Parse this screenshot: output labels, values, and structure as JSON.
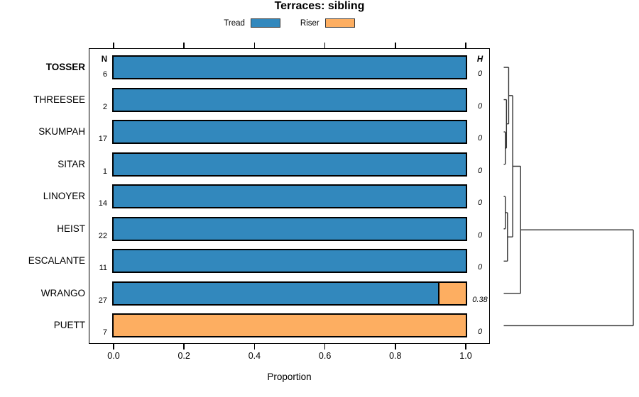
{
  "title": "Terraces: sibling",
  "legend": {
    "items": [
      {
        "label": "Tread",
        "color": "#3288BD"
      },
      {
        "label": "Riser",
        "color": "#FDAE61"
      }
    ]
  },
  "columns": {
    "n_header": "N",
    "h_header": "H"
  },
  "axis": {
    "xlabel": "Proportion",
    "tick_labels": [
      "0.0",
      "0.2",
      "0.4",
      "0.6",
      "0.8",
      "1.0"
    ],
    "tick_values": [
      0.0,
      0.2,
      0.4,
      0.6,
      0.8,
      1.0
    ]
  },
  "colors": {
    "tread": "#3288BD",
    "riser": "#FDAE61",
    "bar_border": "#000000",
    "dendrogram_line": "#333333"
  },
  "chart_data": {
    "type": "bar",
    "orientation": "horizontal-stacked",
    "title": "Terraces: sibling",
    "xlabel": "Proportion",
    "xlim": [
      0,
      1
    ],
    "legend_position": "top",
    "grid": false,
    "categories": [
      "TOSSER",
      "THREESEE",
      "SKUMPAH",
      "SITAR",
      "LINOYER",
      "HEIST",
      "ESCALANTE",
      "WRANGO",
      "PUETT"
    ],
    "series": [
      {
        "name": "Tread",
        "color": "#3288BD",
        "values": [
          1,
          1,
          1,
          1,
          1,
          1,
          1,
          0.926,
          0
        ]
      },
      {
        "name": "Riser",
        "color": "#FDAE61",
        "values": [
          0,
          0,
          0,
          0,
          0,
          0,
          0,
          0.074,
          1
        ]
      }
    ],
    "rows": [
      {
        "label": "TOSSER",
        "bold": true,
        "n": 6,
        "h": "0",
        "tread": 1,
        "riser": 0
      },
      {
        "label": "THREESEE",
        "bold": false,
        "n": 2,
        "h": "0",
        "tread": 1,
        "riser": 0
      },
      {
        "label": "SKUMPAH",
        "bold": false,
        "n": 17,
        "h": "0",
        "tread": 1,
        "riser": 0
      },
      {
        "label": "SITAR",
        "bold": false,
        "n": 1,
        "h": "0",
        "tread": 1,
        "riser": 0
      },
      {
        "label": "LINOYER",
        "bold": false,
        "n": 14,
        "h": "0",
        "tread": 1,
        "riser": 0
      },
      {
        "label": "HEIST",
        "bold": false,
        "n": 22,
        "h": "0",
        "tread": 1,
        "riser": 0
      },
      {
        "label": "ESCALANTE",
        "bold": false,
        "n": 11,
        "h": "0",
        "tread": 1,
        "riser": 0
      },
      {
        "label": "WRANGO",
        "bold": false,
        "n": 27,
        "h": "0.38",
        "tread": 0.926,
        "riser": 0.074
      },
      {
        "label": "PUETT",
        "bold": false,
        "n": 7,
        "h": "0",
        "tread": 0,
        "riser": 1
      }
    ],
    "dendrogram": {
      "note": "heights are relative, root = 1",
      "merges": [
        {
          "id": "c0",
          "a": "SKUMPAH",
          "b": "SITAR",
          "h": 0.012
        },
        {
          "id": "c1",
          "a": "THREESEE",
          "b": "c0",
          "h": 0.021
        },
        {
          "id": "c2",
          "a": "TOSSER",
          "b": "c1",
          "h": 0.038
        },
        {
          "id": "c3",
          "a": "LINOYER",
          "b": "HEIST",
          "h": 0.012
        },
        {
          "id": "c4",
          "a": "c3",
          "b": "ESCALANTE",
          "h": 0.029
        },
        {
          "id": "c5",
          "a": "c2",
          "b": "c4",
          "h": 0.069
        },
        {
          "id": "c6",
          "a": "c5",
          "b": "WRANGO",
          "h": 0.13
        },
        {
          "id": "root",
          "a": "c6",
          "b": "PUETT",
          "h": 1.0
        }
      ]
    }
  }
}
